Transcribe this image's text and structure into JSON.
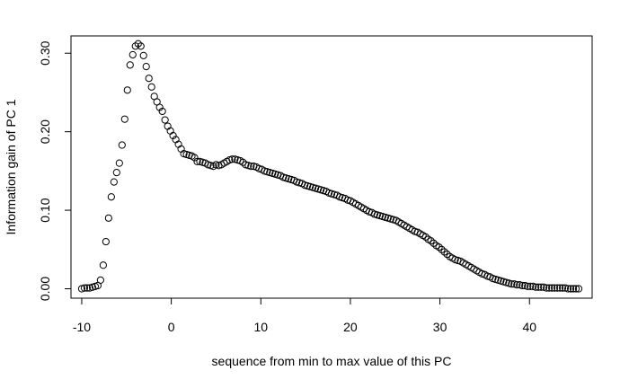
{
  "chart_data": {
    "type": "scatter",
    "title": "",
    "xlabel": "sequence from min to max value of this PC",
    "ylabel": "Information gain of PC  1",
    "xlim": [
      -11.2,
      47
    ],
    "ylim": [
      -0.012,
      0.322
    ],
    "x_ticks": [
      -10,
      0,
      10,
      20,
      30,
      40
    ],
    "x_tick_labels": [
      "-10",
      "0",
      "10",
      "20",
      "30",
      "40"
    ],
    "y_ticks": [
      0.0,
      0.1,
      0.2,
      0.3
    ],
    "y_tick_labels": [
      "0.00",
      "0.10",
      "0.20",
      "0.30"
    ],
    "marker": "open-circle",
    "marker_color": "#000000",
    "points": [
      [
        -10.0,
        0.0
      ],
      [
        -9.7,
        0.001
      ],
      [
        -9.4,
        0.001
      ],
      [
        -9.1,
        0.001
      ],
      [
        -8.8,
        0.002
      ],
      [
        -8.5,
        0.003
      ],
      [
        -8.2,
        0.004
      ],
      [
        -7.9,
        0.011
      ],
      [
        -7.6,
        0.03
      ],
      [
        -7.3,
        0.06
      ],
      [
        -7.0,
        0.09
      ],
      [
        -6.7,
        0.117
      ],
      [
        -6.4,
        0.136
      ],
      [
        -6.1,
        0.148
      ],
      [
        -5.8,
        0.16
      ],
      [
        -5.5,
        0.183
      ],
      [
        -5.2,
        0.216
      ],
      [
        -4.9,
        0.253
      ],
      [
        -4.6,
        0.285
      ],
      [
        -4.3,
        0.298
      ],
      [
        -4.0,
        0.309
      ],
      [
        -3.7,
        0.312
      ],
      [
        -3.4,
        0.309
      ],
      [
        -3.1,
        0.297
      ],
      [
        -2.8,
        0.283
      ],
      [
        -2.5,
        0.268
      ],
      [
        -2.2,
        0.257
      ],
      [
        -1.9,
        0.245
      ],
      [
        -1.6,
        0.238
      ],
      [
        -1.3,
        0.231
      ],
      [
        -1.0,
        0.226
      ],
      [
        -0.7,
        0.215
      ],
      [
        -0.4,
        0.207
      ],
      [
        -0.1,
        0.201
      ],
      [
        0.2,
        0.195
      ],
      [
        0.5,
        0.19
      ],
      [
        0.8,
        0.184
      ],
      [
        1.1,
        0.178
      ],
      [
        1.4,
        0.172
      ],
      [
        1.7,
        0.171
      ],
      [
        2.0,
        0.17
      ],
      [
        2.3,
        0.169
      ],
      [
        2.6,
        0.167
      ],
      [
        2.9,
        0.162
      ],
      [
        3.2,
        0.162
      ],
      [
        3.5,
        0.161
      ],
      [
        3.8,
        0.16
      ],
      [
        4.1,
        0.158
      ],
      [
        4.4,
        0.157
      ],
      [
        4.7,
        0.156
      ],
      [
        5.0,
        0.158
      ],
      [
        5.3,
        0.157
      ],
      [
        5.6,
        0.158
      ],
      [
        5.9,
        0.16
      ],
      [
        6.2,
        0.162
      ],
      [
        6.5,
        0.164
      ],
      [
        6.8,
        0.165
      ],
      [
        7.1,
        0.165
      ],
      [
        7.4,
        0.164
      ],
      [
        7.7,
        0.163
      ],
      [
        8.0,
        0.161
      ],
      [
        8.3,
        0.158
      ],
      [
        8.6,
        0.157
      ],
      [
        8.9,
        0.156
      ],
      [
        9.2,
        0.156
      ],
      [
        9.5,
        0.155
      ],
      [
        9.8,
        0.153
      ],
      [
        10.1,
        0.152
      ],
      [
        10.4,
        0.15
      ],
      [
        10.7,
        0.149
      ],
      [
        11.0,
        0.148
      ],
      [
        11.3,
        0.147
      ],
      [
        11.6,
        0.146
      ],
      [
        11.9,
        0.145
      ],
      [
        12.2,
        0.144
      ],
      [
        12.5,
        0.142
      ],
      [
        12.8,
        0.141
      ],
      [
        13.1,
        0.14
      ],
      [
        13.4,
        0.139
      ],
      [
        13.7,
        0.138
      ],
      [
        14.0,
        0.136
      ],
      [
        14.3,
        0.135
      ],
      [
        14.6,
        0.134
      ],
      [
        14.9,
        0.132
      ],
      [
        15.2,
        0.131
      ],
      [
        15.5,
        0.13
      ],
      [
        15.8,
        0.129
      ],
      [
        16.1,
        0.128
      ],
      [
        16.4,
        0.127
      ],
      [
        16.7,
        0.126
      ],
      [
        17.0,
        0.125
      ],
      [
        17.3,
        0.124
      ],
      [
        17.6,
        0.122
      ],
      [
        17.9,
        0.121
      ],
      [
        18.2,
        0.12
      ],
      [
        18.5,
        0.119
      ],
      [
        18.8,
        0.117
      ],
      [
        19.1,
        0.116
      ],
      [
        19.4,
        0.115
      ],
      [
        19.7,
        0.113
      ],
      [
        20.0,
        0.112
      ],
      [
        20.3,
        0.11
      ],
      [
        20.6,
        0.108
      ],
      [
        20.9,
        0.106
      ],
      [
        21.2,
        0.104
      ],
      [
        21.5,
        0.102
      ],
      [
        21.8,
        0.1
      ],
      [
        22.1,
        0.098
      ],
      [
        22.4,
        0.097
      ],
      [
        22.7,
        0.095
      ],
      [
        23.0,
        0.094
      ],
      [
        23.3,
        0.093
      ],
      [
        23.6,
        0.092
      ],
      [
        23.9,
        0.091
      ],
      [
        24.2,
        0.09
      ],
      [
        24.5,
        0.089
      ],
      [
        24.8,
        0.088
      ],
      [
        25.1,
        0.087
      ],
      [
        25.4,
        0.085
      ],
      [
        25.7,
        0.083
      ],
      [
        26.0,
        0.081
      ],
      [
        26.3,
        0.079
      ],
      [
        26.6,
        0.077
      ],
      [
        26.9,
        0.075
      ],
      [
        27.2,
        0.073
      ],
      [
        27.5,
        0.072
      ],
      [
        27.8,
        0.07
      ],
      [
        28.1,
        0.068
      ],
      [
        28.4,
        0.066
      ],
      [
        28.7,
        0.063
      ],
      [
        29.0,
        0.061
      ],
      [
        29.3,
        0.058
      ],
      [
        29.6,
        0.055
      ],
      [
        29.9,
        0.053
      ],
      [
        30.2,
        0.05
      ],
      [
        30.5,
        0.047
      ],
      [
        30.8,
        0.044
      ],
      [
        31.1,
        0.041
      ],
      [
        31.4,
        0.039
      ],
      [
        31.7,
        0.037
      ],
      [
        32.0,
        0.036
      ],
      [
        32.3,
        0.035
      ],
      [
        32.6,
        0.033
      ],
      [
        32.9,
        0.031
      ],
      [
        33.2,
        0.029
      ],
      [
        33.5,
        0.027
      ],
      [
        33.8,
        0.025
      ],
      [
        34.1,
        0.023
      ],
      [
        34.4,
        0.021
      ],
      [
        34.7,
        0.019
      ],
      [
        35.0,
        0.018
      ],
      [
        35.3,
        0.016
      ],
      [
        35.6,
        0.015
      ],
      [
        35.9,
        0.013
      ],
      [
        36.2,
        0.012
      ],
      [
        36.5,
        0.011
      ],
      [
        36.8,
        0.01
      ],
      [
        37.1,
        0.009
      ],
      [
        37.4,
        0.008
      ],
      [
        37.7,
        0.007
      ],
      [
        38.0,
        0.006
      ],
      [
        38.3,
        0.006
      ],
      [
        38.6,
        0.005
      ],
      [
        38.9,
        0.005
      ],
      [
        39.2,
        0.004
      ],
      [
        39.5,
        0.004
      ],
      [
        39.8,
        0.003
      ],
      [
        40.1,
        0.003
      ],
      [
        40.4,
        0.003
      ],
      [
        40.7,
        0.002
      ],
      [
        41.0,
        0.002
      ],
      [
        41.3,
        0.002
      ],
      [
        41.6,
        0.002
      ],
      [
        41.9,
        0.001
      ],
      [
        42.2,
        0.001
      ],
      [
        42.5,
        0.001
      ],
      [
        42.8,
        0.001
      ],
      [
        43.1,
        0.001
      ],
      [
        43.4,
        0.001
      ],
      [
        43.7,
        0.001
      ],
      [
        44.0,
        0.001
      ],
      [
        44.3,
        0.0
      ],
      [
        44.6,
        0.0
      ],
      [
        44.9,
        0.0
      ],
      [
        45.2,
        0.0
      ],
      [
        45.5,
        0.0
      ]
    ]
  }
}
